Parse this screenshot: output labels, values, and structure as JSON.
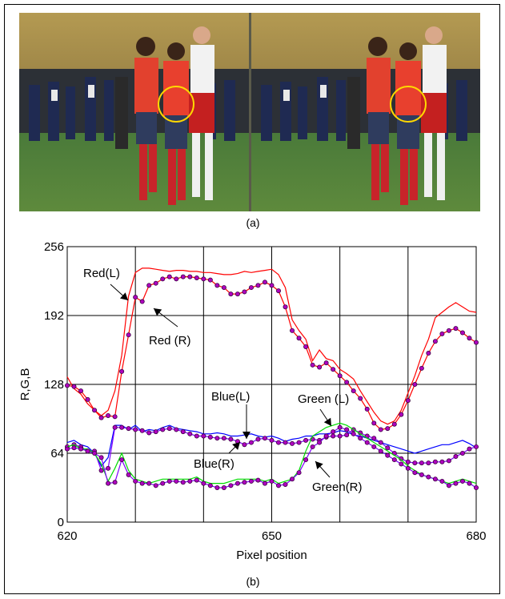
{
  "captions": {
    "a": "(a)",
    "b": "(b)"
  },
  "chart_data": {
    "type": "line",
    "title": "",
    "xlabel": "Pixel position",
    "ylabel": "R,G,B",
    "xlim": [
      620,
      680
    ],
    "ylim": [
      0,
      256
    ],
    "xticks": [
      620,
      630,
      640,
      650,
      660,
      670,
      680
    ],
    "xtick_labels": [
      "620",
      "",
      "",
      "650",
      "",
      "",
      "680"
    ],
    "yticks": [
      0,
      64,
      128,
      192,
      256
    ],
    "ytick_labels": [
      "0",
      "64",
      "128",
      "192",
      "256"
    ],
    "grid": true,
    "series": [
      {
        "name": "Red(L)",
        "color": "#ff0000",
        "marker": false,
        "x": [
          620,
          621,
          622,
          623,
          624,
          625,
          626,
          627,
          628,
          629,
          630,
          631,
          632,
          633,
          634,
          635,
          636,
          637,
          638,
          639,
          640,
          641,
          642,
          643,
          644,
          645,
          646,
          647,
          648,
          649,
          650,
          651,
          652,
          653,
          654,
          655,
          656,
          657,
          658,
          659,
          660,
          661,
          662,
          663,
          664,
          665,
          666,
          667,
          668,
          669,
          670,
          671,
          672,
          673,
          674,
          675,
          676,
          677,
          678,
          679,
          680
        ],
        "y": [
          135,
          124,
          119,
          110,
          104,
          99,
          104,
          122,
          155,
          210,
          232,
          236,
          236,
          235,
          234,
          233,
          234,
          234,
          233,
          233,
          232,
          232,
          231,
          230,
          230,
          231,
          233,
          232,
          233,
          234,
          235,
          230,
          218,
          188,
          178,
          170,
          150,
          160,
          152,
          150,
          142,
          138,
          133,
          122,
          112,
          102,
          94,
          91,
          94,
          104,
          120,
          136,
          155,
          170,
          190,
          195,
          200,
          204,
          200,
          196,
          195
        ]
      },
      {
        "name": "Red (R)",
        "color": "#ff0000",
        "marker": true,
        "x": [
          620,
          621,
          622,
          623,
          624,
          625,
          626,
          627,
          628,
          629,
          630,
          631,
          632,
          633,
          634,
          635,
          636,
          637,
          638,
          639,
          640,
          641,
          642,
          643,
          644,
          645,
          646,
          647,
          648,
          649,
          650,
          651,
          652,
          653,
          654,
          655,
          656,
          657,
          658,
          659,
          660,
          661,
          662,
          663,
          664,
          665,
          666,
          667,
          668,
          669,
          670,
          671,
          672,
          673,
          674,
          675,
          676,
          677,
          678,
          679,
          680
        ],
        "y": [
          127,
          126,
          122,
          114,
          104,
          97,
          99,
          98,
          140,
          174,
          209,
          205,
          220,
          222,
          226,
          228,
          226,
          228,
          228,
          227,
          226,
          225,
          220,
          218,
          212,
          212,
          214,
          218,
          220,
          223,
          220,
          215,
          200,
          178,
          171,
          163,
          146,
          144,
          148,
          142,
          136,
          130,
          122,
          115,
          105,
          92,
          86,
          87,
          91,
          100,
          113,
          128,
          143,
          157,
          168,
          175,
          178,
          180,
          176,
          171,
          167
        ]
      },
      {
        "name": "Blue(L)",
        "color": "#0000ff",
        "marker": false,
        "x": [
          620,
          621,
          622,
          623,
          624,
          625,
          626,
          627,
          628,
          629,
          630,
          631,
          632,
          633,
          634,
          635,
          636,
          637,
          638,
          639,
          640,
          641,
          642,
          643,
          644,
          645,
          646,
          647,
          648,
          649,
          650,
          651,
          652,
          653,
          654,
          655,
          656,
          657,
          658,
          659,
          660,
          661,
          662,
          663,
          664,
          665,
          666,
          667,
          668,
          669,
          670,
          671,
          672,
          673,
          674,
          675,
          676,
          677,
          678,
          679,
          680
        ],
        "y": [
          74,
          76,
          72,
          70,
          64,
          52,
          60,
          90,
          90,
          86,
          90,
          84,
          86,
          85,
          88,
          90,
          87,
          86,
          85,
          84,
          82,
          82,
          83,
          82,
          80,
          80,
          81,
          82,
          80,
          79,
          80,
          78,
          75,
          77,
          78,
          80,
          80,
          82,
          82,
          83,
          85,
          84,
          81,
          80,
          78,
          76,
          74,
          72,
          70,
          68,
          66,
          64,
          66,
          68,
          70,
          72,
          72,
          74,
          76,
          73,
          69
        ]
      },
      {
        "name": "Blue(R)",
        "color": "#7f00ff",
        "marker": true,
        "x": [
          620,
          621,
          622,
          623,
          624,
          625,
          626,
          627,
          628,
          629,
          630,
          631,
          632,
          633,
          634,
          635,
          636,
          637,
          638,
          639,
          640,
          641,
          642,
          643,
          644,
          645,
          646,
          647,
          648,
          649,
          650,
          651,
          652,
          653,
          654,
          655,
          656,
          657,
          658,
          659,
          660,
          661,
          662,
          663,
          664,
          665,
          666,
          667,
          668,
          669,
          670,
          671,
          672,
          673,
          674,
          675,
          676,
          677,
          678,
          679,
          680
        ],
        "y": [
          70,
          72,
          70,
          66,
          66,
          48,
          50,
          88,
          88,
          87,
          86,
          85,
          83,
          84,
          86,
          87,
          86,
          84,
          82,
          80,
          80,
          79,
          78,
          78,
          77,
          75,
          72,
          74,
          77,
          78,
          76,
          74,
          74,
          73,
          74,
          76,
          77,
          76,
          79,
          80,
          80,
          81,
          86,
          83,
          80,
          78,
          74,
          69,
          64,
          59,
          56,
          55,
          55,
          55,
          56,
          56,
          57,
          61,
          64,
          68,
          70
        ]
      },
      {
        "name": "Green (L)",
        "color": "#00dd00",
        "marker": false,
        "x": [
          620,
          621,
          622,
          623,
          624,
          625,
          626,
          627,
          628,
          629,
          630,
          631,
          632,
          633,
          634,
          635,
          636,
          637,
          638,
          639,
          640,
          641,
          642,
          643,
          644,
          645,
          646,
          647,
          648,
          649,
          650,
          651,
          652,
          653,
          654,
          655,
          656,
          657,
          658,
          659,
          660,
          661,
          662,
          663,
          664,
          665,
          666,
          667,
          668,
          669,
          670,
          671,
          672,
          673,
          674,
          675,
          676,
          677,
          678,
          679,
          680
        ],
        "y": [
          70,
          72,
          68,
          68,
          64,
          54,
          38,
          50,
          64,
          48,
          40,
          38,
          36,
          38,
          40,
          40,
          40,
          40,
          40,
          42,
          38,
          36,
          36,
          36,
          38,
          40,
          40,
          40,
          40,
          38,
          40,
          36,
          38,
          40,
          48,
          66,
          80,
          84,
          88,
          90,
          92,
          90,
          86,
          82,
          78,
          74,
          70,
          66,
          62,
          58,
          52,
          48,
          44,
          42,
          40,
          38,
          36,
          38,
          40,
          38,
          36
        ]
      },
      {
        "name": "Green(R)",
        "color": "#7f00ff",
        "marker": true,
        "x": [
          620,
          621,
          622,
          623,
          624,
          625,
          626,
          627,
          628,
          629,
          630,
          631,
          632,
          633,
          634,
          635,
          636,
          637,
          638,
          639,
          640,
          641,
          642,
          643,
          644,
          645,
          646,
          647,
          648,
          649,
          650,
          651,
          652,
          653,
          654,
          655,
          656,
          657,
          658,
          659,
          660,
          661,
          662,
          663,
          664,
          665,
          666,
          667,
          668,
          669,
          670,
          671,
          672,
          673,
          674,
          675,
          676,
          677,
          678,
          679,
          680
        ],
        "y": [
          68,
          69,
          68,
          66,
          64,
          60,
          36,
          37,
          58,
          44,
          38,
          36,
          36,
          34,
          36,
          38,
          38,
          37,
          38,
          39,
          36,
          34,
          32,
          32,
          34,
          36,
          37,
          38,
          39,
          36,
          38,
          34,
          35,
          40,
          46,
          58,
          70,
          74,
          80,
          84,
          88,
          86,
          82,
          78,
          74,
          70,
          66,
          62,
          58,
          54,
          50,
          46,
          44,
          42,
          40,
          38,
          34,
          36,
          38,
          36,
          32
        ]
      }
    ],
    "annotations": [
      {
        "label": "Red(L)",
        "target": "Red(L)"
      },
      {
        "label": "Red (R)",
        "target": "Red (R)"
      },
      {
        "label": "Blue(L)",
        "target": "Blue(L)"
      },
      {
        "label": "Blue(R)",
        "target": "Blue(R)"
      },
      {
        "label": "Green (L)",
        "target": "Green (L)"
      },
      {
        "label": "Green(R)",
        "target": "Green(R)"
      }
    ]
  }
}
